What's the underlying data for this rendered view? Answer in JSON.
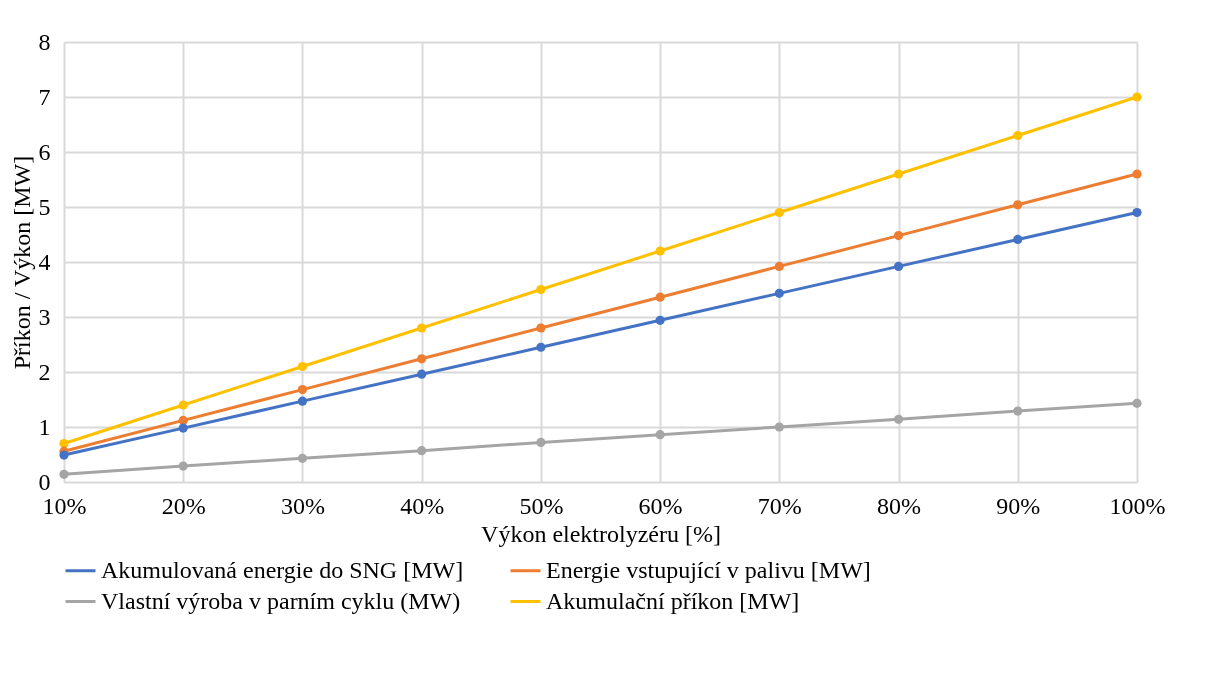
{
  "chart_data": {
    "type": "line",
    "xlabel": "Výkon elektrolyzéru [%]",
    "ylabel": "Příkon / Výkon [MW]",
    "categories": [
      "10%",
      "20%",
      "30%",
      "40%",
      "50%",
      "60%",
      "70%",
      "80%",
      "90%",
      "100%"
    ],
    "series": [
      {
        "name": "Akumulovaná energie do SNG [MW]",
        "color": "#4472c4",
        "values": [
          0.49,
          0.98,
          1.47,
          1.96,
          2.45,
          2.94,
          3.43,
          3.92,
          4.41,
          4.9
        ]
      },
      {
        "name": "Energie vstupující v palivu [MW]",
        "color": "#ed7d31",
        "values": [
          0.56,
          1.12,
          1.68,
          2.24,
          2.8,
          3.36,
          3.92,
          4.48,
          5.04,
          5.6
        ]
      },
      {
        "name": "Vlastní výroba v parním cyklu (MW)",
        "color": "#a5a5a5",
        "values": [
          0.14,
          0.29,
          0.43,
          0.57,
          0.72,
          0.86,
          1.0,
          1.14,
          1.29,
          1.43
        ]
      },
      {
        "name": "Akumulační příkon [MW]",
        "color": "#ffc000",
        "values": [
          0.7,
          1.4,
          2.1,
          2.8,
          3.5,
          4.2,
          4.9,
          5.6,
          6.3,
          7.0
        ]
      }
    ],
    "ylim": [
      0,
      8
    ],
    "yticks": [
      0,
      1,
      2,
      3,
      4,
      5,
      6,
      7,
      8
    ],
    "grid": true,
    "legend": "bottom",
    "marker": "circle",
    "line_style": "solid"
  }
}
